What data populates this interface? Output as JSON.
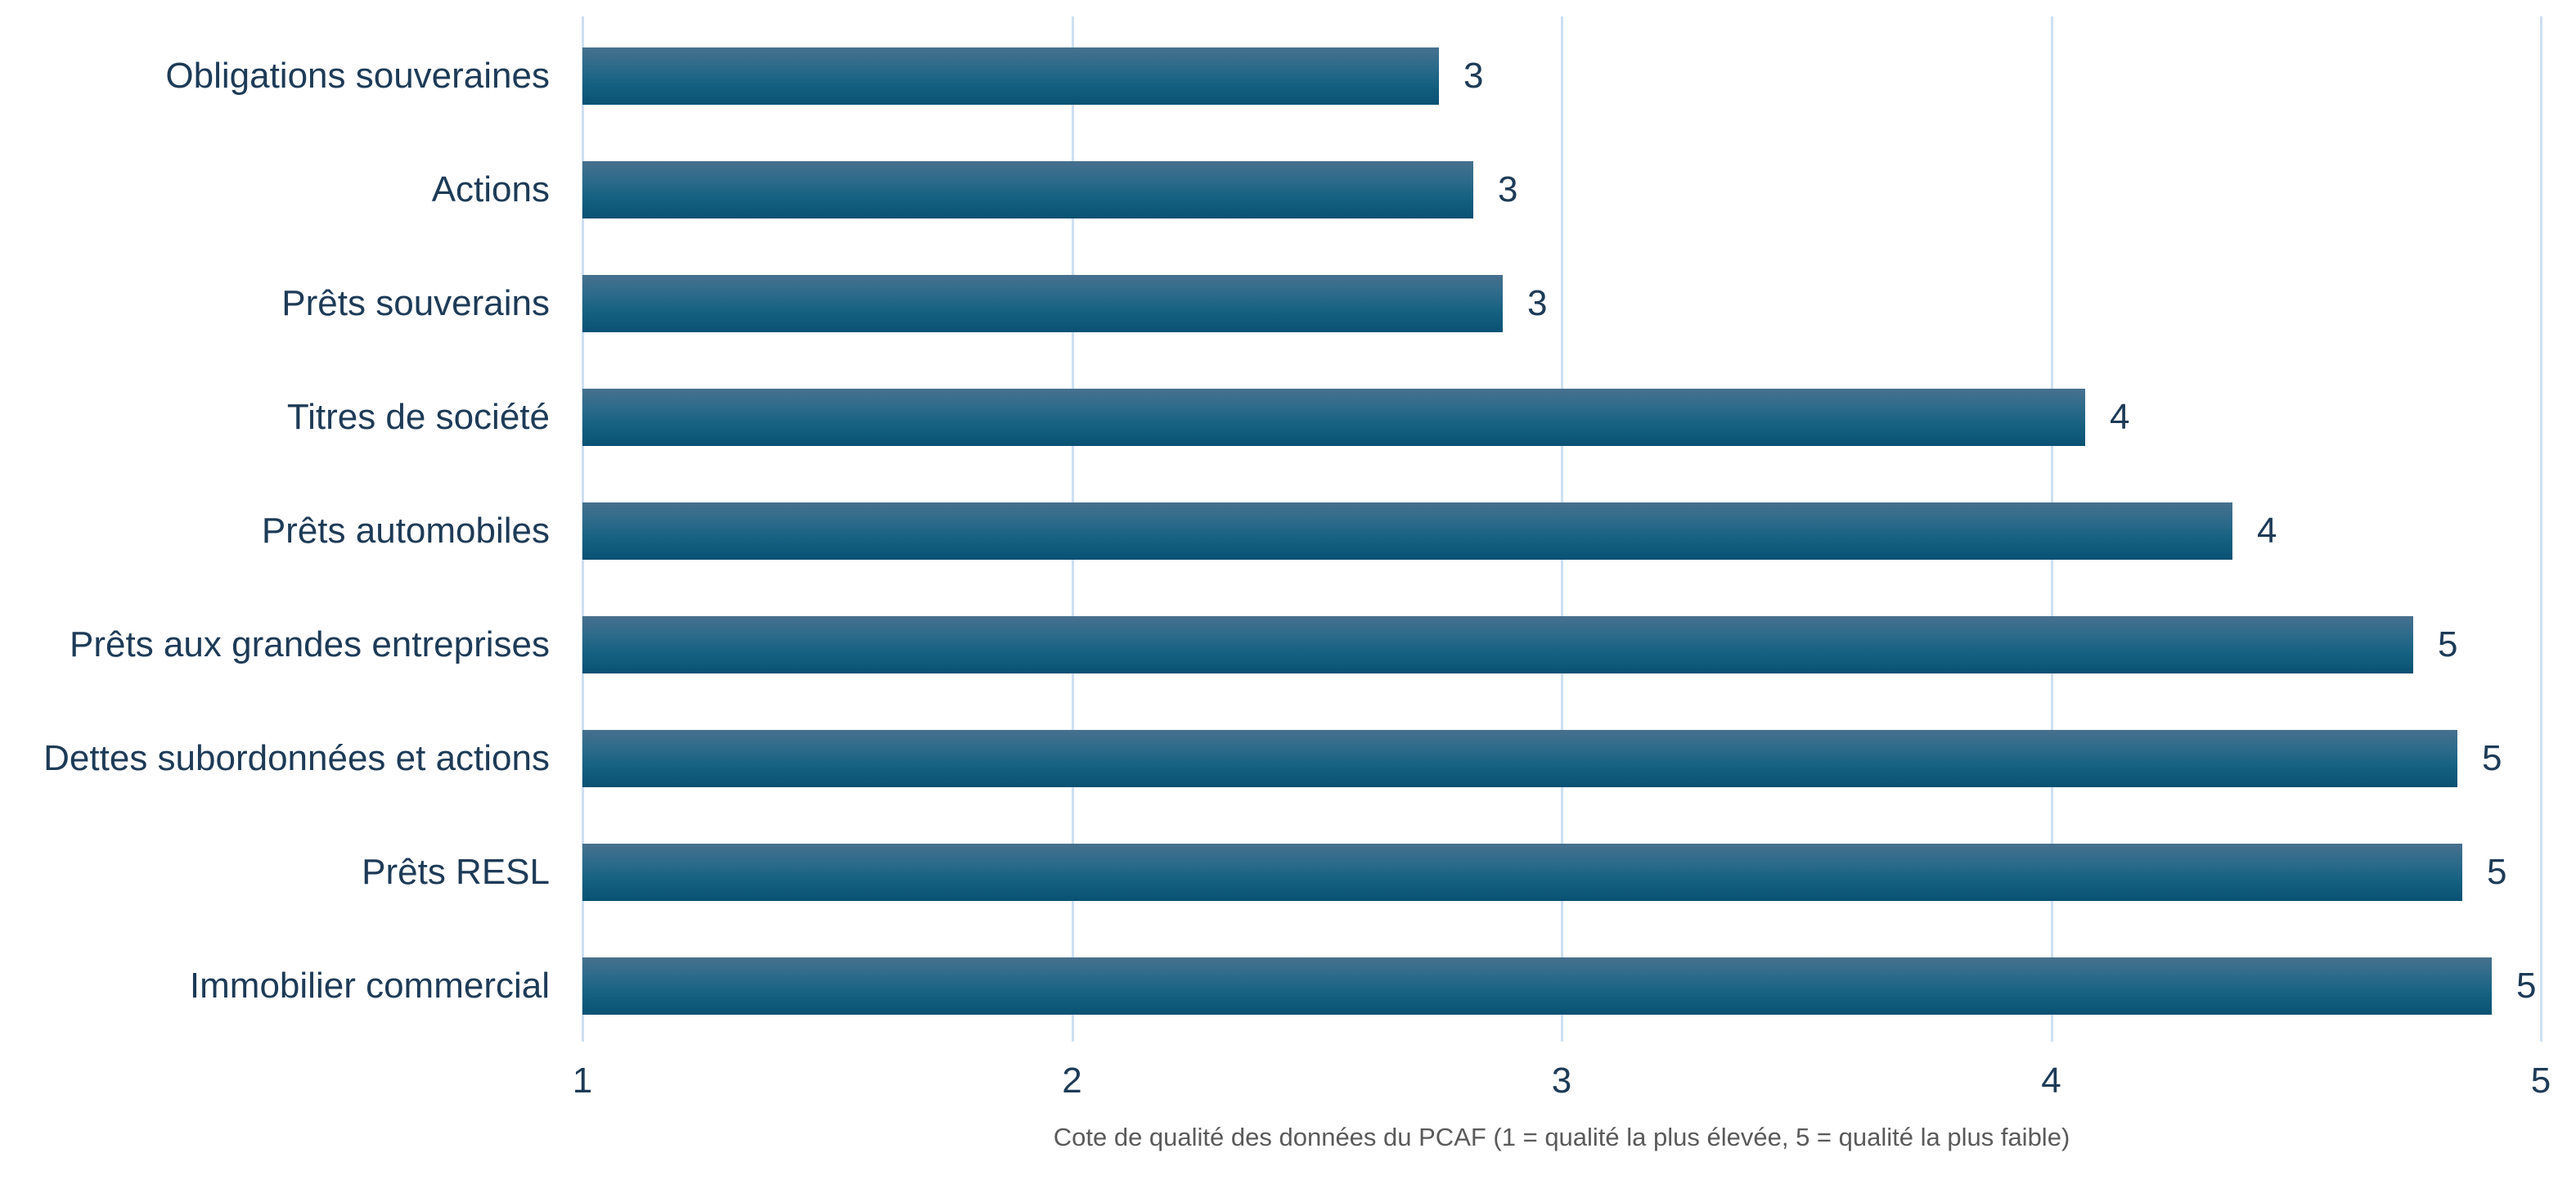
{
  "chart_data": {
    "type": "bar",
    "orientation": "horizontal",
    "categories": [
      "Obligations souveraines",
      "Actions",
      "Prêts souverains",
      "Titres de société",
      "Prêts automobiles",
      "Prêts aux grandes entreprises",
      "Dettes subordonnées et actions",
      "Prêts RESL",
      "Immobilier commercial"
    ],
    "values": [
      2.75,
      2.82,
      2.88,
      4.07,
      4.37,
      4.74,
      4.83,
      4.84,
      4.9
    ],
    "value_labels": [
      "3",
      "3",
      "3",
      "4",
      "4",
      "5",
      "5",
      "5",
      "5"
    ],
    "xlabel": "Cote de qualité des données du PCAF (1 = qualité la plus élevée, 5 = qualité la plus faible)",
    "xlim": [
      1,
      5
    ],
    "xticks": [
      "1",
      "2",
      "3",
      "4",
      "5"
    ],
    "grid": true,
    "legend": "none",
    "colors": {
      "bar_gradient_top": "#47708e",
      "bar_gradient_mid": "#146080",
      "bar_gradient_bottom": "#0a5173",
      "gridline": "#cde0f2",
      "text": "#1d3b57",
      "axis_title": "#5a5a5a"
    }
  }
}
